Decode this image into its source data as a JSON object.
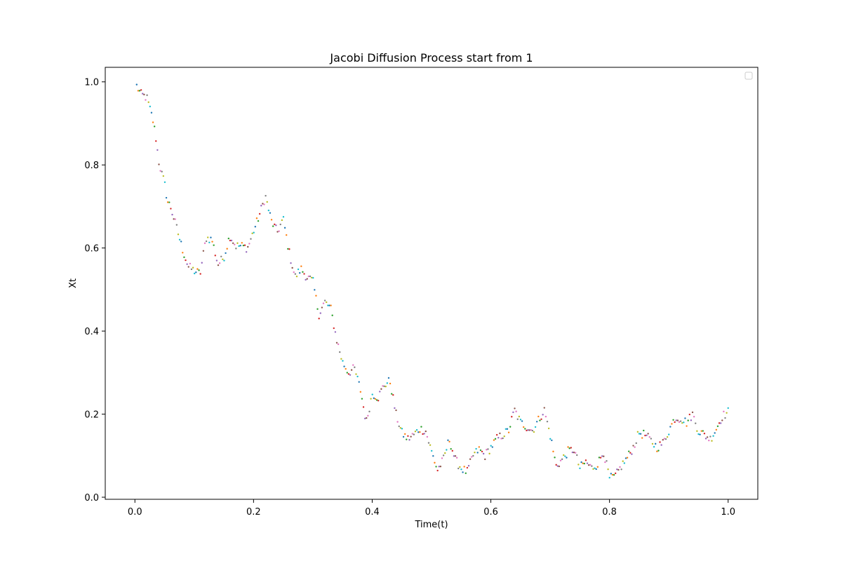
{
  "chart_data": {
    "type": "scatter",
    "title": "Jacobi Diffusion Process start from 1",
    "xlabel": "Time(t)",
    "ylabel": "Xt",
    "xlim": [
      -0.05,
      1.05
    ],
    "ylim": [
      -0.005,
      1.035
    ],
    "xticks": [
      0.0,
      0.2,
      0.4,
      0.6,
      0.8,
      1.0
    ],
    "xtick_labels": [
      "0.0",
      "0.2",
      "0.4",
      "0.6",
      "0.8",
      "1.0"
    ],
    "yticks": [
      0.0,
      0.2,
      0.4,
      0.6,
      0.8,
      1.0
    ],
    "ytick_labels": [
      "0.0",
      "0.2",
      "0.4",
      "0.6",
      "0.8",
      "1.0"
    ],
    "grid": false,
    "legend": {
      "position": "upper-right",
      "entries": []
    },
    "palette": [
      "#1f77b4",
      "#ff7f0e",
      "#2ca02c",
      "#d62728",
      "#9467bd",
      "#8c564b",
      "#e377c2",
      "#7f7f7f",
      "#bcbd22",
      "#17becf"
    ],
    "anchors": [
      [
        0.003,
        0.99
      ],
      [
        0.01,
        0.97
      ],
      [
        0.02,
        0.962
      ],
      [
        0.03,
        0.91
      ],
      [
        0.035,
        0.87
      ],
      [
        0.04,
        0.81
      ],
      [
        0.045,
        0.78
      ],
      [
        0.05,
        0.755
      ],
      [
        0.055,
        0.712
      ],
      [
        0.06,
        0.7
      ],
      [
        0.07,
        0.65
      ],
      [
        0.08,
        0.598
      ],
      [
        0.09,
        0.555
      ],
      [
        0.1,
        0.545
      ],
      [
        0.11,
        0.538
      ],
      [
        0.12,
        0.625
      ],
      [
        0.13,
        0.62
      ],
      [
        0.14,
        0.56
      ],
      [
        0.15,
        0.578
      ],
      [
        0.16,
        0.63
      ],
      [
        0.17,
        0.605
      ],
      [
        0.18,
        0.605
      ],
      [
        0.19,
        0.6
      ],
      [
        0.2,
        0.64
      ],
      [
        0.21,
        0.68
      ],
      [
        0.22,
        0.725
      ],
      [
        0.23,
        0.665
      ],
      [
        0.24,
        0.638
      ],
      [
        0.25,
        0.67
      ],
      [
        0.26,
        0.59
      ],
      [
        0.27,
        0.53
      ],
      [
        0.28,
        0.55
      ],
      [
        0.29,
        0.53
      ],
      [
        0.3,
        0.52
      ],
      [
        0.31,
        0.44
      ],
      [
        0.32,
        0.47
      ],
      [
        0.33,
        0.455
      ],
      [
        0.34,
        0.38
      ],
      [
        0.35,
        0.325
      ],
      [
        0.36,
        0.3
      ],
      [
        0.37,
        0.31
      ],
      [
        0.38,
        0.26
      ],
      [
        0.39,
        0.18
      ],
      [
        0.4,
        0.25
      ],
      [
        0.41,
        0.24
      ],
      [
        0.42,
        0.27
      ],
      [
        0.43,
        0.28
      ],
      [
        0.44,
        0.2
      ],
      [
        0.45,
        0.155
      ],
      [
        0.46,
        0.14
      ],
      [
        0.47,
        0.15
      ],
      [
        0.48,
        0.165
      ],
      [
        0.49,
        0.16
      ],
      [
        0.5,
        0.11
      ],
      [
        0.51,
        0.065
      ],
      [
        0.52,
        0.09
      ],
      [
        0.53,
        0.14
      ],
      [
        0.54,
        0.09
      ],
      [
        0.55,
        0.07
      ],
      [
        0.56,
        0.06
      ],
      [
        0.57,
        0.1
      ],
      [
        0.58,
        0.115
      ],
      [
        0.59,
        0.1
      ],
      [
        0.6,
        0.12
      ],
      [
        0.61,
        0.14
      ],
      [
        0.62,
        0.15
      ],
      [
        0.63,
        0.16
      ],
      [
        0.64,
        0.21
      ],
      [
        0.65,
        0.18
      ],
      [
        0.66,
        0.17
      ],
      [
        0.67,
        0.16
      ],
      [
        0.68,
        0.185
      ],
      [
        0.69,
        0.21
      ],
      [
        0.7,
        0.15
      ],
      [
        0.71,
        0.075
      ],
      [
        0.72,
        0.09
      ],
      [
        0.73,
        0.11
      ],
      [
        0.74,
        0.115
      ],
      [
        0.75,
        0.07
      ],
      [
        0.76,
        0.085
      ],
      [
        0.77,
        0.07
      ],
      [
        0.78,
        0.08
      ],
      [
        0.79,
        0.11
      ],
      [
        0.8,
        0.045
      ],
      [
        0.81,
        0.05
      ],
      [
        0.82,
        0.075
      ],
      [
        0.83,
        0.095
      ],
      [
        0.84,
        0.12
      ],
      [
        0.85,
        0.155
      ],
      [
        0.86,
        0.15
      ],
      [
        0.87,
        0.135
      ],
      [
        0.88,
        0.12
      ],
      [
        0.89,
        0.13
      ],
      [
        0.9,
        0.16
      ],
      [
        0.91,
        0.19
      ],
      [
        0.92,
        0.19
      ],
      [
        0.93,
        0.18
      ],
      [
        0.94,
        0.2
      ],
      [
        0.95,
        0.16
      ],
      [
        0.96,
        0.15
      ],
      [
        0.97,
        0.14
      ],
      [
        0.98,
        0.165
      ],
      [
        0.99,
        0.195
      ],
      [
        1.0,
        0.205
      ]
    ],
    "n_points": 400,
    "marker": "point"
  }
}
